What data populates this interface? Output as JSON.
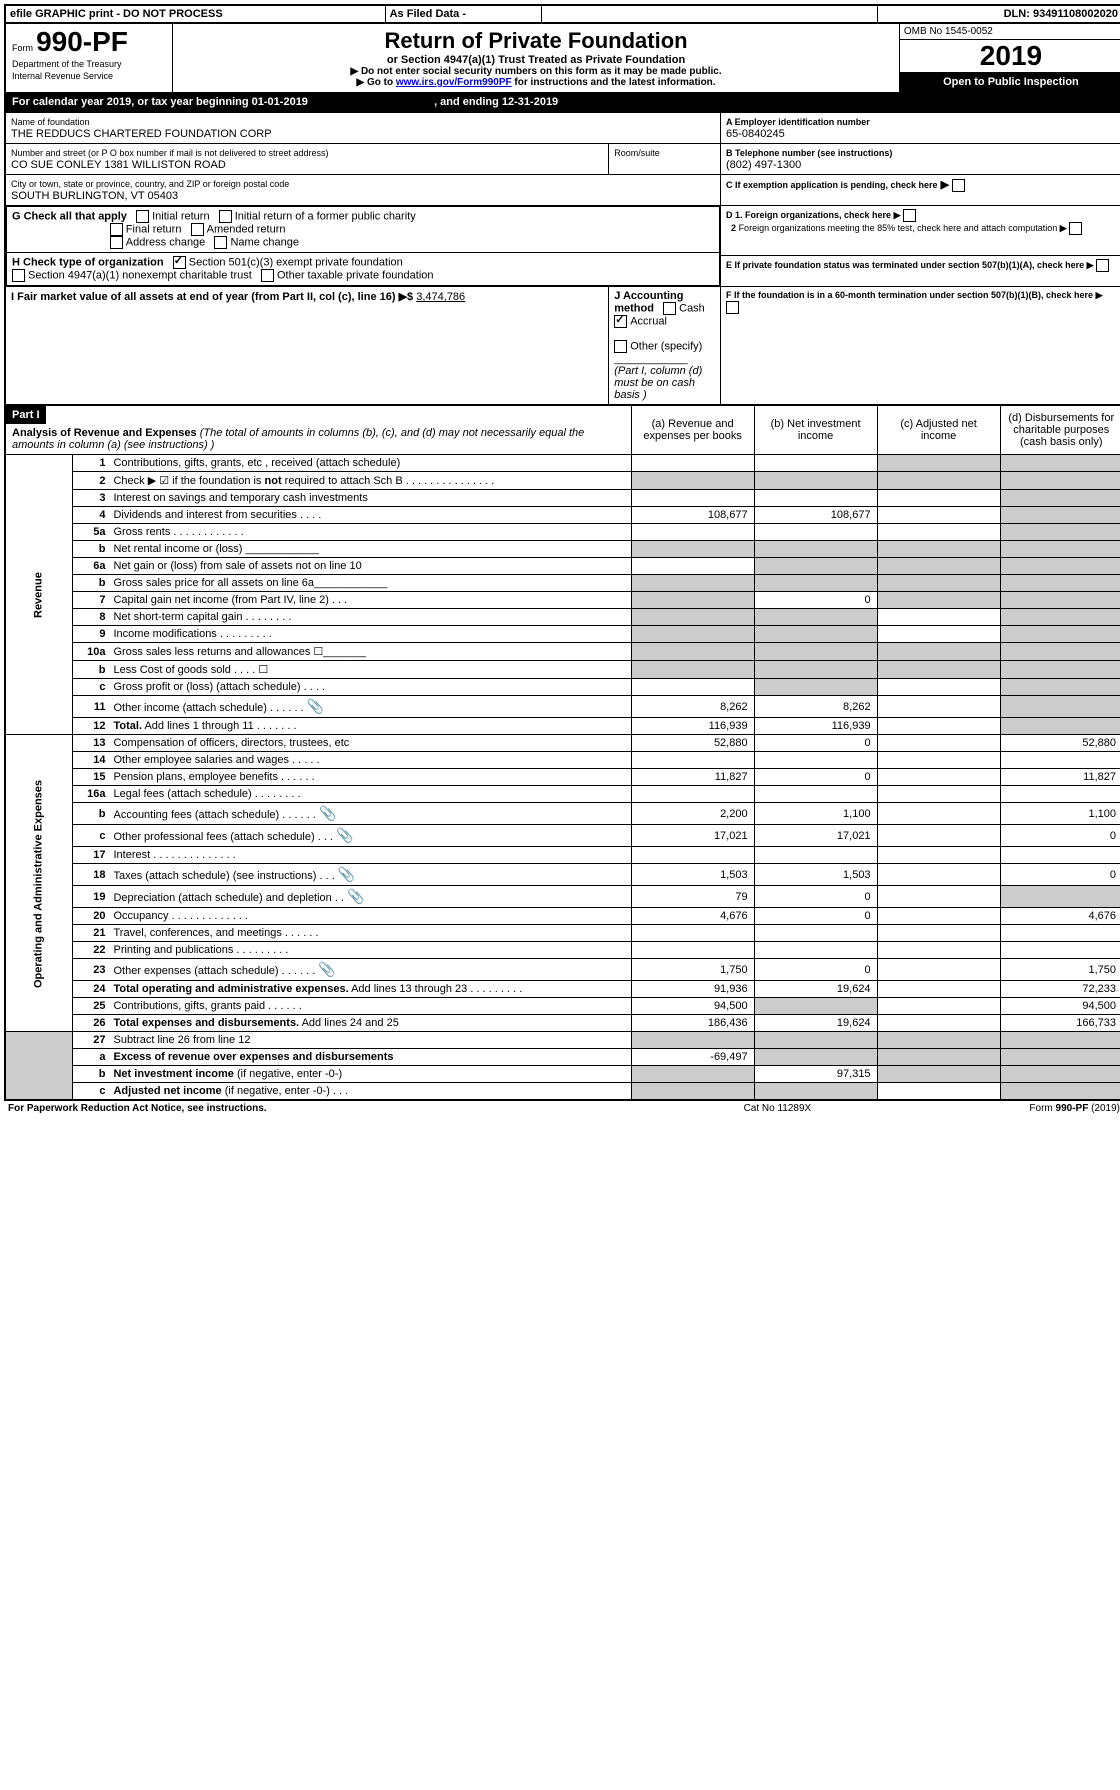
{
  "topbar": {
    "efile": "efile GRAPHIC print - DO NOT PROCESS",
    "asfiled": "As Filed Data -",
    "dln_label": "DLN:",
    "dln": "93491108002020"
  },
  "header": {
    "form_prefix": "Form",
    "form_num": "990-PF",
    "dept": "Department of the Treasury",
    "irs": "Internal Revenue Service",
    "title": "Return of Private Foundation",
    "subtitle": "or Section 4947(a)(1) Trust Treated as Private Foundation",
    "note1": "▶ Do not enter social security numbers on this form as it may be made public.",
    "note2_pre": "▶ Go to ",
    "note2_link": "www.irs.gov/Form990PF",
    "note2_post": " for instructions and the latest information.",
    "omb": "OMB No 1545-0052",
    "year": "2019",
    "open": "Open to Public Inspection"
  },
  "cal": {
    "line_pre": "For calendar year 2019, or tax year beginning ",
    "begin": "01-01-2019",
    "mid": ", and ending ",
    "end": "12-31-2019"
  },
  "info": {
    "name_label": "Name of foundation",
    "name": "THE REDDUCS CHARTERED FOUNDATION CORP",
    "addr_label": "Number and street (or P O  box number if mail is not delivered to street address)",
    "room_label": "Room/suite",
    "addr": "CO SUE CONLEY 1381 WILLISTON ROAD",
    "city_label": "City or town, state or province, country, and ZIP or foreign postal code",
    "city": "SOUTH BURLINGTON, VT  05403",
    "a_label": "A Employer identification number",
    "a_val": "65-0840245",
    "b_label": "B Telephone number (see instructions)",
    "b_val": "(802) 497-1300",
    "c_label": "C If exemption application is pending, check here",
    "d1": "D 1. Foreign organizations, check here",
    "d2a": "2",
    "d2": "Foreign organizations meeting the 85% test, check here and attach computation",
    "e": "E  If private foundation status was terminated under section 507(b)(1)(A), check here",
    "f": "F  If the foundation is in a 60-month termination under section 507(b)(1)(B), check here"
  },
  "g": {
    "label": "G Check all that apply",
    "opts": [
      "Initial return",
      "Initial return of a former public charity",
      "Final return",
      "Amended return",
      "Address change",
      "Name change"
    ]
  },
  "h": {
    "label": "H Check type of organization",
    "opt1": "Section 501(c)(3) exempt private foundation",
    "opt2": "Section 4947(a)(1) nonexempt charitable trust",
    "opt3": "Other taxable private foundation"
  },
  "i": {
    "label": "I Fair market value of all assets at end of year (from Part II, col  (c), line 16)",
    "arrow": "▶$",
    "val": "3,474,786"
  },
  "j": {
    "label": "J Accounting method",
    "cash": "Cash",
    "accrual": "Accrual",
    "other": "Other (specify)",
    "note": "(Part I, column (d) must be on cash basis )"
  },
  "part1": {
    "title": "Part I",
    "heading": "Analysis of Revenue and Expenses",
    "heading_note": " (The total of amounts in columns (b), (c), and (d) may not necessarily equal the amounts in column (a) (see instructions) )",
    "col_a": "(a) Revenue and expenses per books",
    "col_b": "(b) Net investment income",
    "col_c": "(c) Adjusted net income",
    "col_d": "(d) Disbursements for charitable purposes (cash basis only)"
  },
  "rev_label": "Revenue",
  "exp_label": "Operating and Administrative Expenses",
  "rows": [
    {
      "n": "1",
      "d": "Contributions, gifts, grants, etc , received (attach schedule)",
      "a": "",
      "b": "",
      "c": "",
      "dd": "",
      "sa": false,
      "sb": false,
      "sc": true,
      "sd": true
    },
    {
      "n": "2",
      "d": "Check ▶ ☑ if the foundation is <b>not</b> required to attach Sch  B . . . . . . . . . . . . . . .",
      "a": "",
      "b": "",
      "c": "",
      "dd": "",
      "sa": true,
      "sb": true,
      "sc": true,
      "sd": true
    },
    {
      "n": "3",
      "d": "Interest on savings and temporary cash investments",
      "a": "",
      "b": "",
      "c": "",
      "dd": "",
      "sa": false,
      "sb": false,
      "sc": false,
      "sd": true
    },
    {
      "n": "4",
      "d": "Dividends and interest from securities . . . .",
      "a": "108,677",
      "b": "108,677",
      "c": "",
      "dd": "",
      "sa": false,
      "sb": false,
      "sc": false,
      "sd": true
    },
    {
      "n": "5a",
      "d": "Gross rents . . . . . . . . . . . .",
      "a": "",
      "b": "",
      "c": "",
      "dd": "",
      "sa": false,
      "sb": false,
      "sc": false,
      "sd": true
    },
    {
      "n": "b",
      "d": "Net rental income or (loss)   ____________",
      "a": "",
      "b": "",
      "c": "",
      "dd": "",
      "sa": true,
      "sb": true,
      "sc": true,
      "sd": true
    },
    {
      "n": "6a",
      "d": "Net gain or (loss) from sale of assets not on line 10",
      "a": "",
      "b": "",
      "c": "",
      "dd": "",
      "sa": false,
      "sb": true,
      "sc": true,
      "sd": true
    },
    {
      "n": "b",
      "d": "Gross sales price for all assets on line 6a____________",
      "a": "",
      "b": "",
      "c": "",
      "dd": "",
      "sa": true,
      "sb": true,
      "sc": true,
      "sd": true
    },
    {
      "n": "7",
      "d": "Capital gain net income (from Part IV, line 2) . . .",
      "a": "",
      "b": "0",
      "c": "",
      "dd": "",
      "sa": true,
      "sb": false,
      "sc": true,
      "sd": true
    },
    {
      "n": "8",
      "d": "Net short-term capital gain . . . . . . . .",
      "a": "",
      "b": "",
      "c": "",
      "dd": "",
      "sa": true,
      "sb": true,
      "sc": false,
      "sd": true
    },
    {
      "n": "9",
      "d": "Income modifications . . . . . . . . .",
      "a": "",
      "b": "",
      "c": "",
      "dd": "",
      "sa": true,
      "sb": true,
      "sc": false,
      "sd": true
    },
    {
      "n": "10a",
      "d": "Gross sales less returns and allowances  ☐_______",
      "a": "",
      "b": "",
      "c": "",
      "dd": "",
      "sa": true,
      "sb": true,
      "sc": true,
      "sd": true
    },
    {
      "n": "b",
      "d": "Less  Cost of goods sold . . . . ☐",
      "a": "",
      "b": "",
      "c": "",
      "dd": "",
      "sa": true,
      "sb": true,
      "sc": true,
      "sd": true
    },
    {
      "n": "c",
      "d": "Gross profit or (loss) (attach schedule) . . . .",
      "a": "",
      "b": "",
      "c": "",
      "dd": "",
      "sa": false,
      "sb": true,
      "sc": false,
      "sd": true
    },
    {
      "n": "11",
      "d": "Other income (attach schedule) . . . . . .",
      "a": "8,262",
      "b": "8,262",
      "c": "",
      "dd": "",
      "clip": true,
      "sa": false,
      "sb": false,
      "sc": false,
      "sd": true
    },
    {
      "n": "12",
      "d": "<b>Total.</b> Add lines 1 through 11 . . . . . . .",
      "a": "116,939",
      "b": "116,939",
      "c": "",
      "dd": "",
      "sa": false,
      "sb": false,
      "sc": false,
      "sd": true
    }
  ],
  "exp_rows": [
    {
      "n": "13",
      "d": "Compensation of officers, directors, trustees, etc",
      "a": "52,880",
      "b": "0",
      "c": "",
      "dd": "52,880"
    },
    {
      "n": "14",
      "d": "Other employee salaries and wages . . . . .",
      "a": "",
      "b": "",
      "c": "",
      "dd": ""
    },
    {
      "n": "15",
      "d": "Pension plans, employee benefits . . . . . .",
      "a": "11,827",
      "b": "0",
      "c": "",
      "dd": "11,827"
    },
    {
      "n": "16a",
      "d": "Legal fees (attach schedule) . . . . . . . .",
      "a": "",
      "b": "",
      "c": "",
      "dd": ""
    },
    {
      "n": "b",
      "d": "Accounting fees (attach schedule) . . . . . .",
      "a": "2,200",
      "b": "1,100",
      "c": "",
      "dd": "1,100",
      "clip": true
    },
    {
      "n": "c",
      "d": "Other professional fees (attach schedule) . . .",
      "a": "17,021",
      "b": "17,021",
      "c": "",
      "dd": "0",
      "clip": true
    },
    {
      "n": "17",
      "d": "Interest . . . . . . . . . . . . . .",
      "a": "",
      "b": "",
      "c": "",
      "dd": ""
    },
    {
      "n": "18",
      "d": "Taxes (attach schedule) (see instructions) . . .",
      "a": "1,503",
      "b": "1,503",
      "c": "",
      "dd": "0",
      "clip": true
    },
    {
      "n": "19",
      "d": "Depreciation (attach schedule) and depletion . .",
      "a": "79",
      "b": "0",
      "c": "",
      "dd": "",
      "clip": true,
      "sd": true
    },
    {
      "n": "20",
      "d": "Occupancy . . . . . . . . . . . . .",
      "a": "4,676",
      "b": "0",
      "c": "",
      "dd": "4,676"
    },
    {
      "n": "21",
      "d": "Travel, conferences, and meetings . . . . . .",
      "a": "",
      "b": "",
      "c": "",
      "dd": ""
    },
    {
      "n": "22",
      "d": "Printing and publications . . . . . . . . .",
      "a": "",
      "b": "",
      "c": "",
      "dd": ""
    },
    {
      "n": "23",
      "d": "Other expenses (attach schedule) . . . . . .",
      "a": "1,750",
      "b": "0",
      "c": "",
      "dd": "1,750",
      "clip": true
    },
    {
      "n": "24",
      "d": "<b>Total operating and administrative expenses.</b> Add lines 13 through 23 . . . . . . . . .",
      "a": "91,936",
      "b": "19,624",
      "c": "",
      "dd": "72,233"
    },
    {
      "n": "25",
      "d": "Contributions, gifts, grants paid . . . . . .",
      "a": "94,500",
      "b": "",
      "c": "",
      "dd": "94,500",
      "sb": true
    },
    {
      "n": "26",
      "d": "<b>Total expenses and disbursements.</b> Add lines 24 and 25",
      "a": "186,436",
      "b": "19,624",
      "c": "",
      "dd": "166,733"
    }
  ],
  "bottom_rows": [
    {
      "n": "27",
      "d": "Subtract line 26 from line 12",
      "a": "",
      "b": "",
      "c": "",
      "dd": "",
      "sa": true,
      "sb": true,
      "sc": true,
      "sd": true
    },
    {
      "n": "a",
      "d": "<b>Excess of revenue over expenses and disbursements</b>",
      "a": "-69,497",
      "b": "",
      "c": "",
      "dd": "",
      "sb": true,
      "sc": true,
      "sd": true
    },
    {
      "n": "b",
      "d": "<b>Net investment income</b> (if negative, enter -0-)",
      "a": "",
      "b": "97,315",
      "c": "",
      "dd": "",
      "sa": true,
      "sc": true,
      "sd": true
    },
    {
      "n": "c",
      "d": "<b>Adjusted net income</b> (if negative, enter -0-) . . .",
      "a": "",
      "b": "",
      "c": "",
      "dd": "",
      "sa": true,
      "sb": true,
      "sd": true
    }
  ],
  "footer": {
    "left": "For Paperwork Reduction Act Notice, see instructions.",
    "mid": "Cat  No  11289X",
    "right": "Form 990-PF (2019)"
  }
}
